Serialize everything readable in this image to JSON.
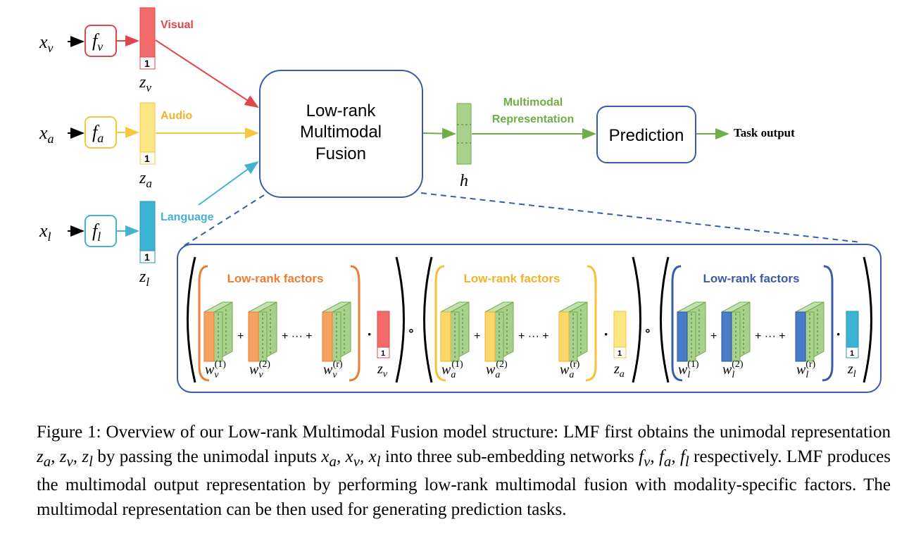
{
  "colors": {
    "visual": "#e0474c",
    "visual_fill": "#f26b6b",
    "audio": "#f5c842",
    "audio_fill": "#fce584",
    "language": "#45b3cf",
    "language_fill": "#3bb4d4",
    "green": "#70ad47",
    "green_fill": "#a9d18e",
    "blue": "#3a5ca8",
    "orange": "#ed7d31",
    "orange_fill": "#f4a460",
    "yellow_border": "#f6c030",
    "blue_fill": "#4a7cc9"
  },
  "inputs": [
    {
      "id": "v",
      "x_base": "x",
      "x_sub": "v",
      "f_base": "f",
      "f_sub": "v",
      "z_base": "z",
      "z_sub": "v",
      "label": "Visual",
      "one": "1"
    },
    {
      "id": "a",
      "x_base": "x",
      "x_sub": "a",
      "f_base": "f",
      "f_sub": "a",
      "z_base": "z",
      "z_sub": "a",
      "label": "Audio",
      "one": "1"
    },
    {
      "id": "l",
      "x_base": "x",
      "x_sub": "l",
      "f_base": "f",
      "f_sub": "l",
      "z_base": "z",
      "z_sub": "l",
      "label": "Language",
      "one": "1"
    }
  ],
  "fusion": {
    "line1": "Low-rank",
    "line2": "Multimodal",
    "line3": "Fusion"
  },
  "multimodal": {
    "line1": "Multimodal",
    "line2": "Representation",
    "h": "h"
  },
  "prediction": {
    "label": "Prediction",
    "output": "Task output"
  },
  "factors": [
    {
      "title": "Low-rank factors",
      "w_sub": "v",
      "z_sub": "v",
      "one": "1",
      "plus": "+",
      "ellipsis": "+ ··· +",
      "sup1": "(1)",
      "sup2": "(2)",
      "supr": "(r)",
      "w": "w",
      "z": "z",
      "dot": "·"
    },
    {
      "title": "Low-rank factors",
      "w_sub": "a",
      "z_sub": "a",
      "one": "1",
      "plus": "+",
      "ellipsis": "+ ··· +",
      "sup1": "(1)",
      "sup2": "(2)",
      "supr": "(r)",
      "w": "w",
      "z": "z",
      "dot": "·"
    },
    {
      "title": "Low-rank factors",
      "w_sub": "l",
      "z_sub": "l",
      "one": "1",
      "plus": "+",
      "ellipsis": "+ ··· +",
      "sup1": "(1)",
      "sup2": "(2)",
      "supr": "(r)",
      "w": "w",
      "z": "z",
      "dot": "·"
    }
  ],
  "hadamard": "∘",
  "caption": {
    "p1": "Figure 1: Overview of our Low-rank Multimodal Fusion model structure: LMF first obtains the unimodal representation ",
    "m1": "z",
    "m1_sub": "a",
    "m1b": ", z",
    "m1b_sub": "v",
    "m1c": ", z",
    "m1c_sub": "l",
    "p2": " by passing the unimodal inputs ",
    "m2": "x",
    "m2_sub": "a",
    "m2b": ", x",
    "m2b_sub": "v",
    "m2c": ", x",
    "m2c_sub": "l",
    "p3": " into three sub-embedding networks ",
    "m3": "f",
    "m3_sub": "v",
    "m3b": ", f",
    "m3b_sub": "a",
    "m3c": ", f",
    "m3c_sub": "l",
    "p4": " respectively. LMF produces the multimodal output representation by performing low-rank multimodal fusion with modality-specific factors. The multimodal representation can be then used for generating prediction tasks."
  }
}
